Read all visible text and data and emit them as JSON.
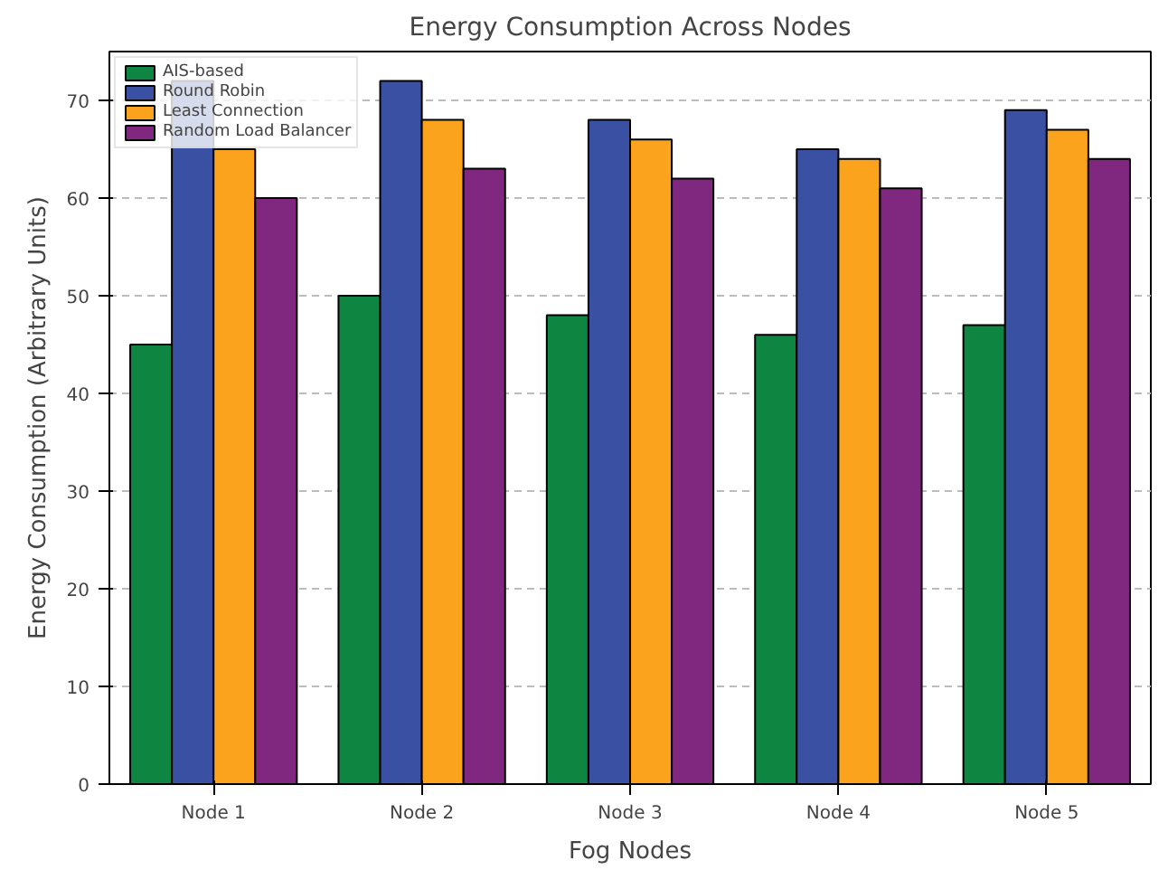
{
  "chart_data": {
    "type": "bar",
    "title": "Energy Consumption Across Nodes",
    "xlabel": "Fog Nodes",
    "ylabel": "Energy Consumption (Arbitrary Units)",
    "categories": [
      "Node 1",
      "Node 2",
      "Node 3",
      "Node 4",
      "Node 5"
    ],
    "series": [
      {
        "name": "AIS-based",
        "color": "#0e8540",
        "values": [
          45,
          50,
          48,
          46,
          47
        ]
      },
      {
        "name": "Round Robin",
        "color": "#3a51a3",
        "values": [
          72,
          72,
          68,
          65,
          69
        ]
      },
      {
        "name": "Least Connection",
        "color": "#fba31d",
        "values": [
          65,
          68,
          66,
          64,
          67
        ]
      },
      {
        "name": "Random Load Balancer",
        "color": "#80287f",
        "values": [
          60,
          63,
          62,
          61,
          64
        ]
      }
    ],
    "ylim": [
      0,
      75
    ],
    "yticks": [
      0,
      10,
      20,
      30,
      40,
      50,
      60,
      70
    ],
    "grid": "y",
    "legend": "top left"
  }
}
